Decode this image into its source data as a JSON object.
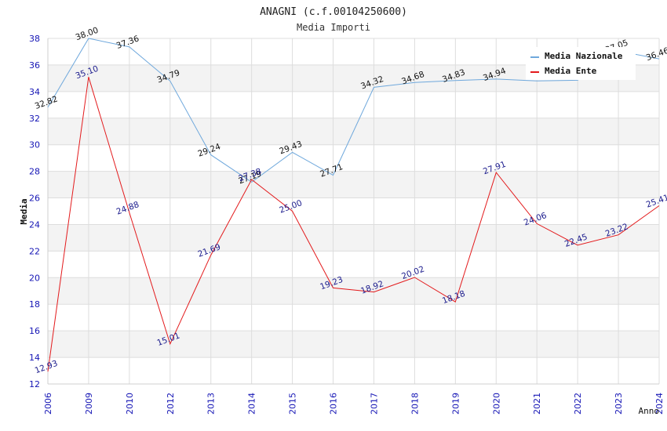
{
  "chart_data": {
    "type": "line",
    "title": "ANAGNI (c.f.00104250600)",
    "subtitle": "Media Importi",
    "xlabel": "Anno",
    "ylabel": "Media",
    "ylim": [
      12,
      38
    ],
    "yticks": [
      "12",
      "14",
      "16",
      "18",
      "20",
      "22",
      "24",
      "26",
      "28",
      "30",
      "32",
      "34",
      "36",
      "38"
    ],
    "categories": [
      "2006",
      "2009",
      "2010",
      "2012",
      "2013",
      "2014",
      "2015",
      "2016",
      "2017",
      "2018",
      "2019",
      "2020",
      "2021",
      "2022",
      "2023",
      "2024"
    ],
    "grid": true,
    "legend_position": "top-right",
    "series": [
      {
        "name": "Media Nazionale",
        "color": "#6fa8dc",
        "label_color": "#111111",
        "values": [
          32.82,
          38.0,
          37.36,
          34.79,
          29.24,
          27.19,
          29.43,
          27.71,
          34.32,
          34.68,
          34.83,
          34.94,
          34.8,
          34.85,
          37.05,
          36.46
        ],
        "labels": [
          "32.82",
          "38.00",
          "37.36",
          "34.79",
          "29.24",
          "27.19",
          "29.43",
          "27.71",
          "34.32",
          "34.68",
          "34.83",
          "34.94",
          "",
          "",
          "37.05",
          "36.46"
        ]
      },
      {
        "name": "Media Ente",
        "color": "#e31a1c",
        "label_color": "#1a1a8c",
        "values": [
          12.93,
          35.1,
          24.88,
          15.01,
          21.69,
          27.38,
          25.0,
          19.23,
          18.92,
          20.02,
          18.18,
          27.91,
          24.06,
          22.45,
          23.22,
          25.41
        ],
        "labels": [
          "12.93",
          "35.10",
          "24.88",
          "15.01",
          "21.69",
          "27.38",
          "25.00",
          "19.23",
          "18.92",
          "20.02",
          "18.18",
          "27.91",
          "24.06",
          "22.45",
          "23.22",
          "25.41"
        ]
      }
    ]
  }
}
